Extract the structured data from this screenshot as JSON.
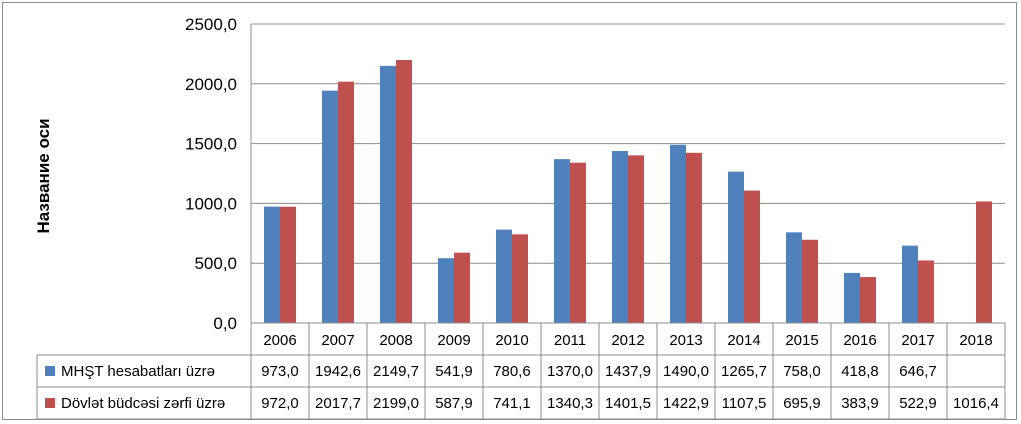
{
  "chart_data": {
    "type": "bar",
    "title": "",
    "xlabel": "",
    "ylabel": "Название оси",
    "ylim": [
      0,
      2500
    ],
    "yticks": [
      "0,0",
      "500,0",
      "1000,0",
      "1500,0",
      "2000,0",
      "2500,0"
    ],
    "grid": true,
    "legend": "data table below chart",
    "categories": [
      "2006",
      "2007",
      "2008",
      "2009",
      "2010",
      "2011",
      "2012",
      "2013",
      "2014",
      "2015",
      "2016",
      "2017",
      "2018"
    ],
    "series": [
      {
        "name": "MHŞT hesabatları üzrə",
        "color": "#4f81bd",
        "values": [
          973.0,
          1942.6,
          2149.7,
          541.9,
          780.6,
          1370.0,
          1437.9,
          1490.0,
          1265.7,
          758.0,
          418.8,
          646.7,
          null
        ],
        "labels": [
          "973,0",
          "1942,6",
          "2149,7",
          "541,9",
          "780,6",
          "1370,0",
          "1437,9",
          "1490,0",
          "1265,7",
          "758,0",
          "418,8",
          "646,7",
          ""
        ]
      },
      {
        "name": "Dövlət büdcəsi zərfi üzrə",
        "color": "#c0504d",
        "values": [
          972.0,
          2017.7,
          2199.0,
          587.9,
          741.1,
          1340.3,
          1401.5,
          1422.9,
          1107.5,
          695.9,
          383.9,
          522.9,
          1016.4
        ],
        "labels": [
          "972,0",
          "2017,7",
          "2199,0",
          "587,9",
          "741,1",
          "1340,3",
          "1401,5",
          "1422,9",
          "1107,5",
          "695,9",
          "383,9",
          "522,9",
          "1016,4"
        ]
      }
    ]
  }
}
